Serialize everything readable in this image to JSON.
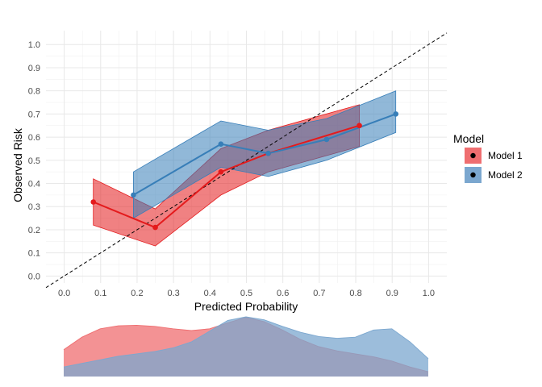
{
  "chart_data": [
    {
      "type": "line",
      "xlabel": "Predicted Probability",
      "ylabel": "Observed Risk",
      "xlim": [
        -0.05,
        1.05
      ],
      "ylim": [
        -0.03,
        1.06
      ],
      "x_ticks": [
        "0.0",
        "0.1",
        "0.2",
        "0.3",
        "0.4",
        "0.5",
        "0.6",
        "0.7",
        "0.8",
        "0.9",
        "1.0"
      ],
      "y_ticks": [
        "0.0",
        "0.1",
        "0.2",
        "0.3",
        "0.4",
        "0.5",
        "0.6",
        "0.7",
        "0.8",
        "0.9",
        "1.0"
      ],
      "grid": true,
      "reference_line": {
        "style": "dashed",
        "x": [
          -0.05,
          1.05
        ],
        "y": [
          -0.05,
          1.05
        ]
      },
      "legend": {
        "title": "Model",
        "position": "right"
      },
      "series": [
        {
          "name": "Model 1",
          "color": "#E41A1C",
          "ribbon_color": "#EF6E70",
          "x": [
            0.08,
            0.25,
            0.43,
            0.56,
            0.81
          ],
          "y": [
            0.32,
            0.21,
            0.45,
            0.53,
            0.65
          ],
          "lower": [
            0.22,
            0.13,
            0.35,
            0.45,
            0.56
          ],
          "upper": [
            0.42,
            0.29,
            0.55,
            0.63,
            0.74
          ]
        },
        {
          "name": "Model 2",
          "color": "#377EB8",
          "ribbon_color": "#7BA7CF",
          "x": [
            0.19,
            0.43,
            0.56,
            0.72,
            0.91
          ],
          "y": [
            0.35,
            0.57,
            0.53,
            0.59,
            0.7
          ],
          "lower": [
            0.25,
            0.47,
            0.43,
            0.5,
            0.62
          ],
          "upper": [
            0.45,
            0.67,
            0.63,
            0.68,
            0.8
          ]
        }
      ]
    },
    {
      "type": "area",
      "description_type": "density",
      "x": [
        0.0,
        0.05,
        0.1,
        0.15,
        0.2,
        0.25,
        0.3,
        0.35,
        0.4,
        0.45,
        0.5,
        0.55,
        0.6,
        0.65,
        0.7,
        0.75,
        0.8,
        0.85,
        0.9,
        0.95,
        1.0
      ],
      "series": [
        {
          "name": "Model 1",
          "color": "#EF6E70",
          "values": [
            0.45,
            0.66,
            0.8,
            0.85,
            0.86,
            0.84,
            0.8,
            0.77,
            0.8,
            0.9,
            0.99,
            0.92,
            0.78,
            0.62,
            0.5,
            0.43,
            0.38,
            0.33,
            0.26,
            0.16,
            0.08
          ]
        },
        {
          "name": "Model 2",
          "color": "#7BA7CF",
          "values": [
            0.16,
            0.22,
            0.28,
            0.34,
            0.38,
            0.42,
            0.48,
            0.58,
            0.76,
            0.94,
            1.0,
            0.95,
            0.84,
            0.74,
            0.67,
            0.64,
            0.66,
            0.78,
            0.8,
            0.58,
            0.3
          ]
        }
      ]
    }
  ]
}
